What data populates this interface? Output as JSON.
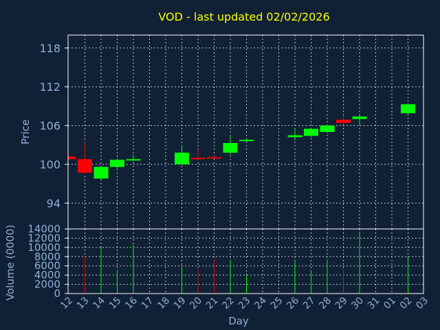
{
  "chart_data": {
    "type": "candlestick",
    "title": "VOD - last updated 02/02/2026",
    "price_panel": {
      "ylabel": "Price",
      "ylim": [
        90,
        120
      ],
      "yticks": [
        94,
        100,
        106,
        112,
        118
      ],
      "grid": true
    },
    "volume_panel": {
      "ylabel": "Volume (0000)",
      "ylim": [
        0,
        14000
      ],
      "yticks": [
        0,
        2000,
        4000,
        6000,
        8000,
        10000,
        12000,
        14000
      ],
      "grid": true
    },
    "xlabel": "Day",
    "x_tick_labels": [
      "12",
      "13",
      "14",
      "15",
      "16",
      "17",
      "18",
      "19",
      "20",
      "21",
      "22",
      "23",
      "24",
      "25",
      "26",
      "27",
      "28",
      "29",
      "30",
      "31",
      "01",
      "02",
      "03"
    ],
    "colors": {
      "up": "#00ff00",
      "down": "#ff0000",
      "background": "#102035",
      "grid": "#ffffff",
      "axis_text": "#8fb0d8",
      "title": "#ffff00"
    },
    "candles": [
      {
        "day": "12",
        "open": 101.2,
        "high": 101.4,
        "low": 100.7,
        "close": 100.8,
        "volume": 0
      },
      {
        "day": "13",
        "open": 100.8,
        "high": 103.4,
        "low": 98.5,
        "close": 98.7,
        "volume": 8200
      },
      {
        "day": "14",
        "open": 97.8,
        "high": 99.6,
        "low": 97.6,
        "close": 99.6,
        "volume": 10000
      },
      {
        "day": "15",
        "open": 99.6,
        "high": 100.9,
        "low": 99.0,
        "close": 100.7,
        "volume": 5000
      },
      {
        "day": "16",
        "open": 100.7,
        "high": 101.5,
        "low": 100.5,
        "close": 100.8,
        "volume": 10600
      },
      {
        "day": "19",
        "open": 100.0,
        "high": 102.9,
        "low": 100.0,
        "close": 101.8,
        "volume": 6000
      },
      {
        "day": "20",
        "open": 101.0,
        "high": 102.3,
        "low": 100.7,
        "close": 100.9,
        "volume": 5200
      },
      {
        "day": "21",
        "open": 101.1,
        "high": 101.3,
        "low": 100.9,
        "close": 101.0,
        "volume": 7200
      },
      {
        "day": "22",
        "open": 101.8,
        "high": 104.6,
        "low": 101.5,
        "close": 103.3,
        "volume": 7400
      },
      {
        "day": "23",
        "open": 103.6,
        "high": 104.0,
        "low": 103.4,
        "close": 103.8,
        "volume": 4000
      },
      {
        "day": "26",
        "open": 104.2,
        "high": 105.4,
        "low": 103.7,
        "close": 104.5,
        "volume": 7400
      },
      {
        "day": "27",
        "open": 104.4,
        "high": 105.6,
        "low": 104.2,
        "close": 105.5,
        "volume": 5000
      },
      {
        "day": "28",
        "open": 105.0,
        "high": 106.2,
        "low": 104.8,
        "close": 106.0,
        "volume": 7400
      },
      {
        "day": "29",
        "open": 106.9,
        "high": 107.6,
        "low": 106.3,
        "close": 106.4,
        "volume": 5200
      },
      {
        "day": "30",
        "open": 107.0,
        "high": 107.6,
        "low": 106.2,
        "close": 107.4,
        "volume": 13400
      },
      {
        "day": "02",
        "open": 107.9,
        "high": 109.4,
        "low": 107.8,
        "close": 109.3,
        "volume": 7800
      }
    ]
  }
}
